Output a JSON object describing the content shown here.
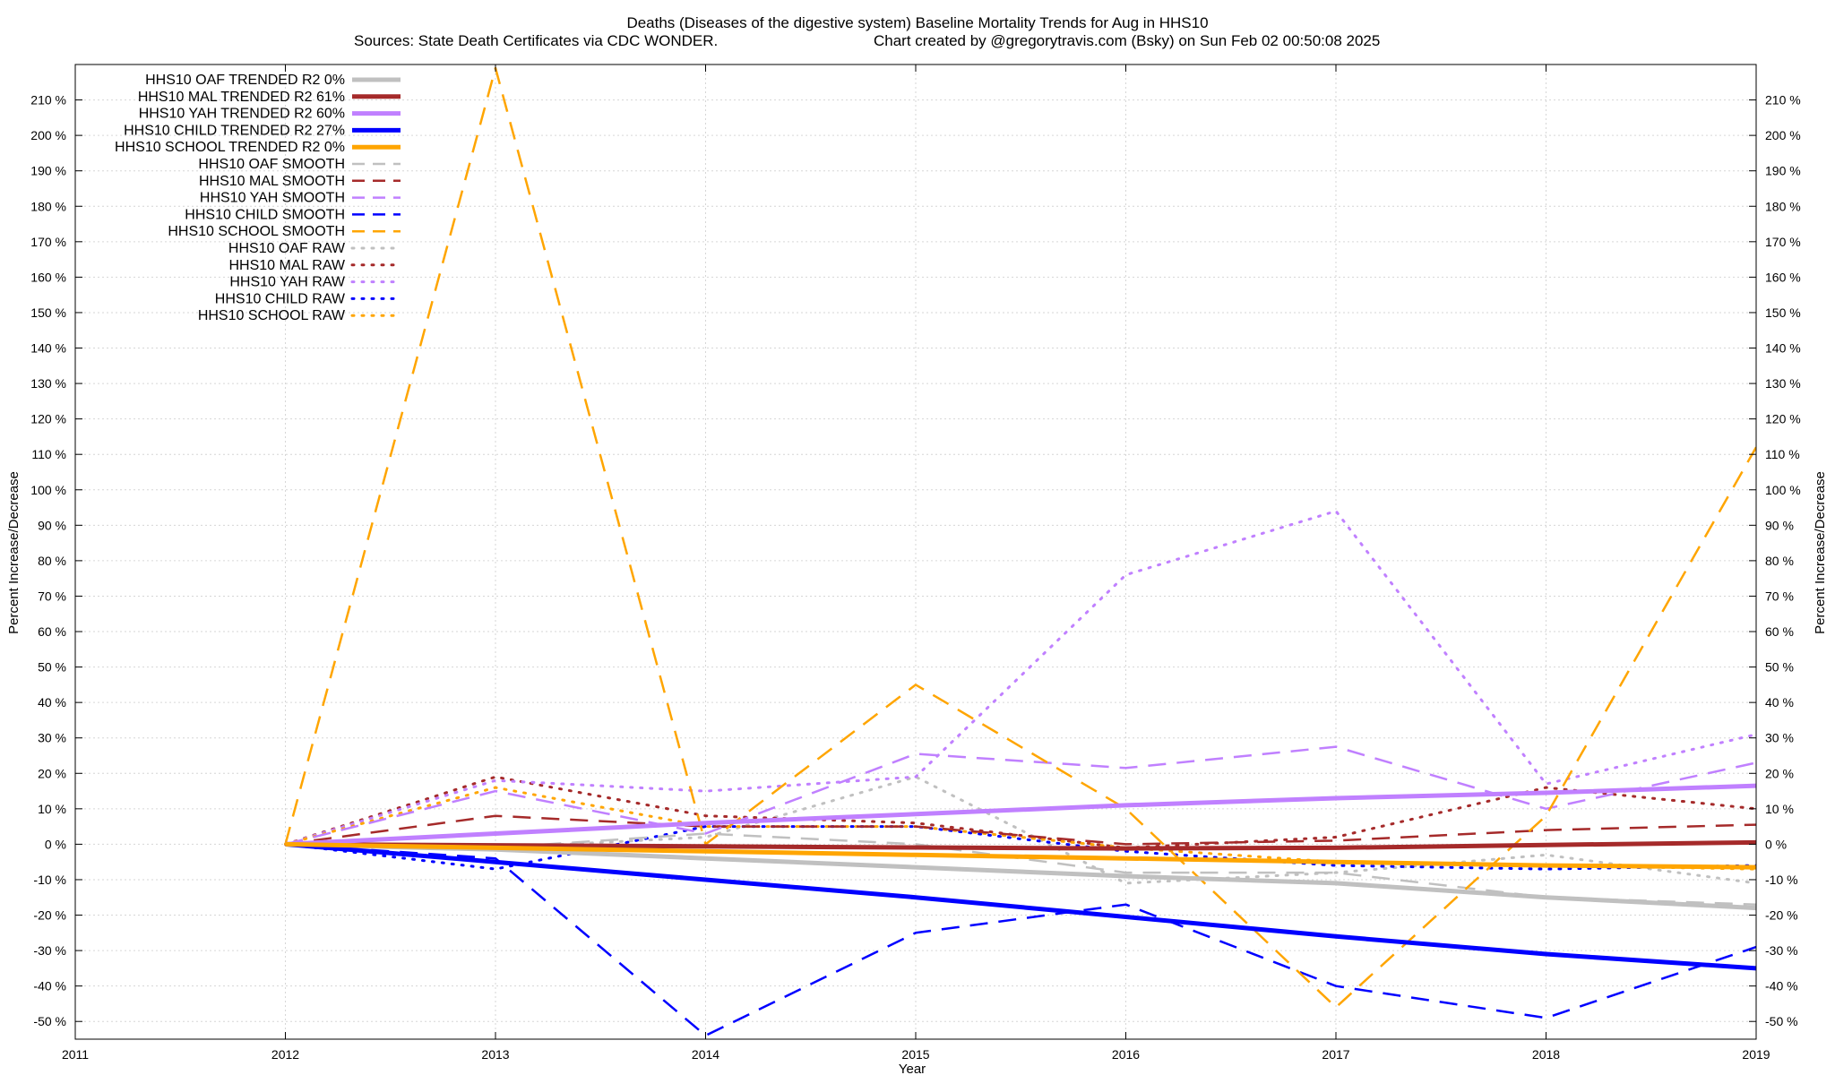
{
  "chart_data": {
    "type": "line",
    "title": "Deaths (Diseases of the digestive system)  Baseline Mortality Trends for Aug in HHS10",
    "subtitle_left": "Sources: State Death Certificates via CDC WONDER.",
    "subtitle_right": "Chart created by @gregorytravis.com (Bsky) on Sun Feb 02 00:50:08 2025",
    "xlabel": "Year",
    "ylabel_left": "Percent Increase/Decrease",
    "ylabel_right": "Percent Increase/Decrease",
    "xlim": [
      2011,
      2019
    ],
    "ylim": [
      -55,
      220
    ],
    "x_ticks": [
      "2011",
      "2012",
      "2013",
      "2014",
      "2015",
      "2016",
      "2017",
      "2018",
      "2019"
    ],
    "y_ticks": [
      210,
      200,
      190,
      180,
      170,
      160,
      150,
      140,
      130,
      120,
      110,
      100,
      90,
      80,
      70,
      60,
      50,
      40,
      30,
      20,
      10,
      0,
      -10,
      -20,
      -30,
      -40,
      -50
    ],
    "y_tick_left_labels": [
      "210 %",
      "200 %",
      "190 %",
      "180 %",
      "170 %",
      "160 %",
      "150 %",
      "140 %",
      "130 %",
      "120 %",
      "110 %",
      "100 %",
      "90 %",
      "80 %",
      "70 %",
      "60 %",
      "50 %",
      "40 %",
      "30 %",
      "20 %",
      "10 %",
      "0 %",
      "-10 %",
      "-20 %",
      "-30 %",
      "-40 %",
      "-50 %"
    ],
    "y_tick_right_labels": [
      "210 %",
      "200 %",
      "190 %",
      "180 %",
      "170 %",
      "160 %",
      "150 %",
      "140 %",
      "130 %",
      "120 %",
      "110 %",
      "100 %",
      "90 %",
      "80 %",
      "70 %",
      "60 %",
      "50 %",
      "40 %",
      "30 %",
      "20 %",
      "10 %",
      "0 %",
      "-10 %",
      "-20 %",
      "-30 %",
      "-40 %",
      "-50 %"
    ],
    "grid": true,
    "legend_position": "top-left",
    "x": [
      2012,
      2013,
      2014,
      2015,
      2016,
      2017,
      2018,
      2019
    ],
    "series": [
      {
        "name": "HHS10 OAF TRENDED R2  0%",
        "style": "solid",
        "color": "#c0c0c0",
        "values": [
          0,
          -1.5,
          -4,
          -6.5,
          -9,
          -11,
          -15,
          -18
        ]
      },
      {
        "name": "HHS10 MAL TRENDED R2  61%",
        "style": "solid",
        "color": "#a52a2a",
        "values": [
          0,
          -0.3,
          -0.6,
          -0.9,
          -1.2,
          -1,
          -0.2,
          0.5
        ]
      },
      {
        "name": "HHS10 YAH TRENDED R2  60%",
        "style": "solid",
        "color": "#c080ff",
        "values": [
          0,
          3,
          6,
          8.5,
          11,
          13,
          14.5,
          16.5
        ]
      },
      {
        "name": "HHS10 CHILD TRENDED R2  27%",
        "style": "solid",
        "color": "#0000ff",
        "values": [
          0,
          -5,
          -10,
          -15,
          -20.5,
          -26,
          -31,
          -35
        ]
      },
      {
        "name": "HHS10 SCHOOL TRENDED R2  0%",
        "style": "solid",
        "color": "#ffa500",
        "values": [
          0,
          -1,
          -2,
          -3,
          -4,
          -5,
          -6,
          -6.5
        ]
      },
      {
        "name": "HHS10 OAF SMOOTH",
        "style": "dash",
        "color": "#c0c0c0",
        "values": [
          0,
          -1,
          3,
          0,
          -8,
          -8,
          -15,
          -17
        ]
      },
      {
        "name": "HHS10 MAL SMOOTH",
        "style": "dash",
        "color": "#a52a2a",
        "values": [
          0,
          8,
          5,
          5,
          0,
          1,
          4,
          5.5
        ]
      },
      {
        "name": "HHS10 YAH SMOOTH",
        "style": "dash",
        "color": "#c080ff",
        "values": [
          0,
          15,
          3,
          25.5,
          21.5,
          27.5,
          10,
          23
        ]
      },
      {
        "name": "HHS10 CHILD SMOOTH",
        "style": "dash",
        "color": "#0000ff",
        "values": [
          0,
          -4,
          -54,
          -25,
          -17,
          -40,
          -49,
          -29
        ]
      },
      {
        "name": "HHS10 SCHOOL SMOOTH",
        "style": "dash",
        "color": "#ffa500",
        "values": [
          0,
          219,
          0,
          45,
          10,
          -46,
          8,
          112
        ]
      },
      {
        "name": "HHS10 OAF RAW",
        "style": "dot",
        "color": "#c0c0c0",
        "values": [
          0,
          -1,
          2,
          19,
          -11,
          -8,
          -3,
          -11
        ]
      },
      {
        "name": "HHS10 MAL RAW",
        "style": "dot",
        "color": "#a52a2a",
        "values": [
          0,
          19,
          8,
          6,
          -1,
          2,
          16,
          10
        ]
      },
      {
        "name": "HHS10 YAH RAW",
        "style": "dot",
        "color": "#c080ff",
        "values": [
          0,
          18,
          15,
          19,
          76,
          94,
          17,
          31
        ]
      },
      {
        "name": "HHS10 CHILD RAW",
        "style": "dot",
        "color": "#0000ff",
        "values": [
          0,
          -7,
          5,
          5,
          -2,
          -6,
          -7,
          -6
        ]
      },
      {
        "name": "HHS10 SCHOOL RAW",
        "style": "dot",
        "color": "#ffa500",
        "values": [
          0,
          16,
          5,
          5,
          -1,
          -5,
          -6,
          -7
        ]
      }
    ]
  }
}
